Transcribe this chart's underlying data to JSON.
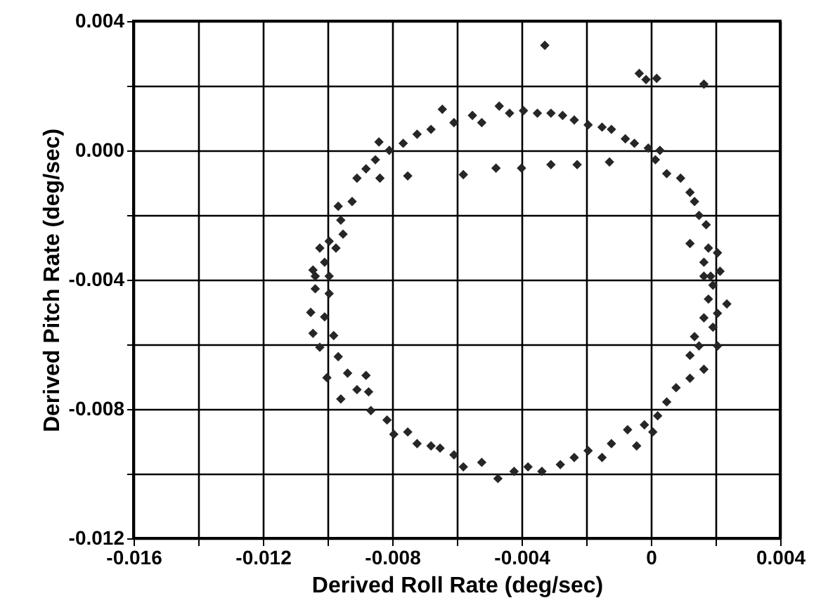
{
  "chart_data": {
    "type": "scatter",
    "xlabel": "Derived Roll Rate (deg/sec)",
    "ylabel": "Derived Pitch Rate (deg/sec)",
    "xlim": [
      -0.016,
      0.004
    ],
    "ylim": [
      -0.012,
      0.004
    ],
    "xticks": [
      -0.016,
      {
        "value": -0.014,
        "label": null
      },
      -0.012,
      {
        "value": -0.01,
        "label": null
      },
      -0.008,
      {
        "value": -0.006,
        "label": null
      },
      -0.004,
      {
        "value": -0.002,
        "label": null
      },
      0,
      {
        "value": 0.002,
        "label": null
      },
      0.004
    ],
    "yticks": [
      -0.012,
      {
        "value": -0.01,
        "label": null
      },
      -0.008,
      {
        "value": -0.006,
        "label": null
      },
      -0.004,
      {
        "value": -0.002,
        "label": null
      },
      {
        "value": 0,
        "label": "0.000"
      },
      {
        "value": 0.002,
        "label": null
      },
      0.004
    ],
    "grid": true,
    "marker": "diamond",
    "series": [
      {
        "color": "#262626",
        "x": [
          -0.00328,
          -0.00036,
          -0.00015,
          0.00018,
          0.00164,
          -0.0058,
          -0.00479,
          -0.004,
          -0.00309,
          -0.00228,
          -0.00128,
          -0.00752,
          -0.00841,
          -0.00645,
          -0.00609,
          -0.00552,
          -0.00523,
          -0.00469,
          -0.00437,
          -0.00394,
          -0.00351,
          -0.00309,
          -0.00273,
          -0.00237,
          -0.00194,
          -0.00151,
          -0.00122,
          -0.00079,
          -0.00051,
          -8e-05,
          0.00028,
          0.00014,
          0.00049,
          0.00092,
          0.00121,
          0.00135,
          0.00149,
          0.00171,
          0.00121,
          0.00178,
          0.00206,
          0.00164,
          0.00185,
          -0.0068,
          -0.00723,
          -0.00766,
          -0.00809,
          -0.00852,
          -0.00881,
          -0.00909,
          -0.00838,
          -0.00924,
          -0.00967,
          -0.00959,
          -0.00952,
          -0.00995,
          -0.01024,
          -0.01009,
          -0.01038,
          -0.00995,
          -0.00974,
          -0.01045,
          -0.01038,
          -0.00995,
          -0.01052,
          -0.01009,
          -0.01045,
          -0.00981,
          -0.01024,
          -0.00967,
          -0.01002,
          -0.00938,
          -0.00881,
          -0.00959,
          -0.00909,
          -0.00873,
          -0.00866,
          -0.00816,
          -0.00795,
          -0.00752,
          -0.00723,
          -0.0068,
          -0.00652,
          -0.00609,
          -0.0058,
          -0.00523,
          -0.00473,
          -0.00423,
          -0.0038,
          -0.00337,
          -0.0028,
          -0.00237,
          -0.00194,
          -0.00151,
          -0.00122,
          -0.00072,
          -0.00044,
          -0.0002,
          6e-05,
          0.00021,
          0.00049,
          0.00078,
          0.00121,
          0.00164,
          0.00121,
          0.00149,
          0.00206,
          0.00135,
          0.00192,
          0.00164,
          0.00206,
          0.00235,
          0.00178,
          0.00192,
          0.00164,
          0.00214
        ],
        "values": [
          0.00325,
          0.00238,
          0.00219,
          0.00223,
          0.00205,
          -0.00075,
          -0.00055,
          -0.00055,
          -0.00044,
          -0.00044,
          -0.00036,
          -0.00079,
          0.00026,
          0.00127,
          0.00086,
          0.00108,
          0.00086,
          0.00137,
          0.00115,
          0.00123,
          0.00115,
          0.00115,
          0.00108,
          0.00094,
          0.00079,
          0.00072,
          0.00065,
          0.00036,
          0.00022,
          7e-05,
          0,
          -0.00029,
          -0.00072,
          -0.00086,
          -0.0013,
          -0.00158,
          -0.00201,
          -0.0023,
          -0.00288,
          -0.00302,
          -0.00317,
          -0.00346,
          -0.00389,
          0.00065,
          0.0005,
          0.00022,
          0,
          -0.00029,
          -0.00057,
          -0.00086,
          -0.00086,
          -0.00158,
          -0.00173,
          -0.00216,
          -0.00259,
          -0.00281,
          -0.00302,
          -0.00346,
          -0.00389,
          -0.00389,
          -0.00302,
          -0.0037,
          -0.00428,
          -0.00443,
          -0.00501,
          -0.00515,
          -0.00566,
          -0.00573,
          -0.00609,
          -0.00638,
          -0.00703,
          -0.00689,
          -0.00696,
          -0.00769,
          -0.0074,
          -0.00747,
          -0.00805,
          -0.00834,
          -0.00878,
          -0.00871,
          -0.00907,
          -0.00914,
          -0.00921,
          -0.00942,
          -0.00979,
          -0.00965,
          -0.01015,
          -0.00993,
          -0.00979,
          -0.00993,
          -0.00972,
          -0.0095,
          -0.00929,
          -0.0095,
          -0.00907,
          -0.00864,
          -0.00914,
          -0.00849,
          -0.00871,
          -0.00821,
          -0.00778,
          -0.00734,
          -0.00705,
          -0.00677,
          -0.00634,
          -0.00605,
          -0.00605,
          -0.00576,
          -0.00547,
          -0.00518,
          -0.00504,
          -0.00475,
          -0.0046,
          -0.00417,
          -0.00389,
          -0.00374
        ]
      }
    ]
  }
}
